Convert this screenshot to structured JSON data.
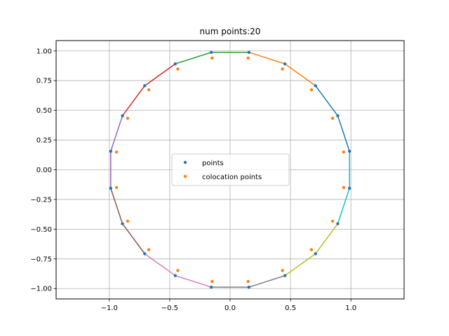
{
  "chart_data": {
    "type": "scatter",
    "title": "num points:20",
    "xlabel": "",
    "ylabel": "",
    "xlim": [
      -1.44,
      1.44
    ],
    "ylim": [
      -1.087,
      1.087
    ],
    "x_ticks": [
      -1.0,
      -0.5,
      0.0,
      0.5,
      1.0
    ],
    "x_tick_labels": [
      "−1.0",
      "−0.5",
      "0.0",
      "0.5",
      "1.0"
    ],
    "y_ticks": [
      -1.0,
      -0.75,
      -0.5,
      -0.25,
      0.0,
      0.25,
      0.5,
      0.75,
      1.0
    ],
    "y_tick_labels": [
      "−1.00",
      "−0.75",
      "−0.50",
      "−0.25",
      "0.00",
      "0.25",
      "0.50",
      "0.75",
      "1.00"
    ],
    "grid": true,
    "legend_placement": "center",
    "series": [
      {
        "name": "points",
        "color": "#1f77b4",
        "x": [
          0.988,
          0.891,
          0.707,
          0.454,
          0.156,
          -0.156,
          -0.454,
          -0.707,
          -0.891,
          -0.988,
          -0.988,
          -0.891,
          -0.707,
          -0.454,
          -0.156,
          0.156,
          0.454,
          0.707,
          0.891,
          0.988
        ],
        "y": [
          0.156,
          0.454,
          0.707,
          0.891,
          0.988,
          0.988,
          0.891,
          0.707,
          0.454,
          0.156,
          -0.156,
          -0.454,
          -0.707,
          -0.891,
          -0.988,
          -0.988,
          -0.891,
          -0.707,
          -0.454,
          -0.156
        ]
      },
      {
        "name": "colocation points",
        "color": "#ff7f0e",
        "x": [
          0.94,
          0.848,
          0.673,
          0.433,
          0.149,
          -0.149,
          -0.433,
          -0.673,
          -0.848,
          -0.94,
          -0.94,
          -0.848,
          -0.673,
          -0.433,
          -0.149,
          0.149,
          0.433,
          0.673,
          0.848,
          0.94
        ],
        "y": [
          0.149,
          0.433,
          0.673,
          0.848,
          0.94,
          0.94,
          0.848,
          0.673,
          0.433,
          0.149,
          -0.149,
          -0.433,
          -0.673,
          -0.848,
          -0.94,
          -0.94,
          -0.848,
          -0.673,
          -0.433,
          -0.149
        ]
      }
    ],
    "segment_colors": [
      "#1f77b4",
      "#ff7f0e",
      "#2ca02c",
      "#d62728",
      "#9467bd",
      "#8c564b",
      "#e377c2",
      "#7f7f7f",
      "#bcbd22",
      "#17becf"
    ]
  }
}
